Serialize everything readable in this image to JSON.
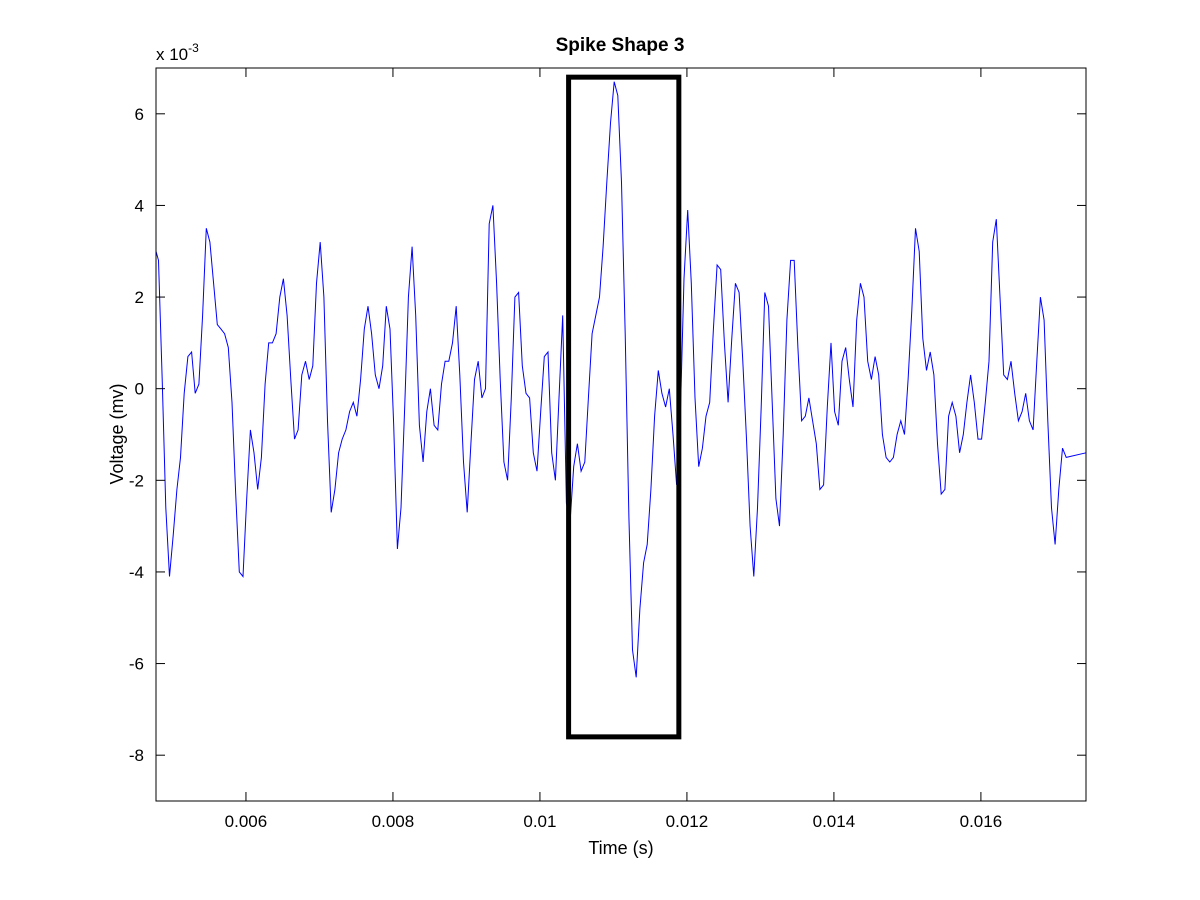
{
  "chart_data": {
    "type": "line",
    "title": "Spike Shape 3",
    "xlabel": "Time (s)",
    "ylabel": "Voltage (mv)",
    "y_exponent_label": "x 10",
    "y_exponent": "-3",
    "xlim": [
      0.004776,
      0.01743
    ],
    "ylim": [
      -9,
      7
    ],
    "x_ticks": [
      0.006,
      0.008,
      0.01,
      0.012,
      0.014,
      0.016
    ],
    "x_tick_labels": [
      "0.006",
      "0.008",
      "0.01",
      "0.012",
      "0.014",
      "0.016"
    ],
    "y_ticks": [
      6,
      4,
      2,
      0,
      -2,
      -4,
      -6,
      -8
    ],
    "y_tick_labels": [
      "6",
      "4",
      "2",
      "0",
      "-2",
      "-4",
      "-6",
      "-8"
    ],
    "grid": false,
    "legend": null,
    "series": [
      {
        "name": "spike waveform",
        "color": "#0000ff",
        "points": [
          [
            0.004776,
            3.0
          ],
          [
            0.00481,
            2.8
          ],
          [
            0.00486,
            0.2
          ],
          [
            0.00491,
            -2.6
          ],
          [
            0.00496,
            -4.1
          ],
          [
            0.00501,
            -3.2
          ],
          [
            0.00506,
            -2.2
          ],
          [
            0.00511,
            -1.5
          ],
          [
            0.00516,
            -0.1
          ],
          [
            0.00521,
            0.7
          ],
          [
            0.00526,
            0.8
          ],
          [
            0.00531,
            -0.1
          ],
          [
            0.00536,
            0.1
          ],
          [
            0.00541,
            1.6
          ],
          [
            0.00546,
            3.5
          ],
          [
            0.00551,
            3.2
          ],
          [
            0.00556,
            2.3
          ],
          [
            0.00561,
            1.4
          ],
          [
            0.00566,
            1.3
          ],
          [
            0.00571,
            1.2
          ],
          [
            0.00576,
            0.9
          ],
          [
            0.00581,
            -0.3
          ],
          [
            0.00586,
            -2.3
          ],
          [
            0.00591,
            -4.0
          ],
          [
            0.00596,
            -4.1
          ],
          [
            0.00601,
            -2.4
          ],
          [
            0.00606,
            -0.9
          ],
          [
            0.00611,
            -1.4
          ],
          [
            0.00616,
            -2.2
          ],
          [
            0.00621,
            -1.5
          ],
          [
            0.00626,
            0.1
          ],
          [
            0.00631,
            1.0
          ],
          [
            0.00636,
            1.0
          ],
          [
            0.00641,
            1.2
          ],
          [
            0.00646,
            2.0
          ],
          [
            0.00651,
            2.4
          ],
          [
            0.00656,
            1.6
          ],
          [
            0.00661,
            0.2
          ],
          [
            0.00666,
            -1.1
          ],
          [
            0.00671,
            -0.9
          ],
          [
            0.00676,
            0.3
          ],
          [
            0.00681,
            0.6
          ],
          [
            0.00686,
            0.2
          ],
          [
            0.00691,
            0.5
          ],
          [
            0.00696,
            2.3
          ],
          [
            0.00701,
            3.2
          ],
          [
            0.00706,
            2.0
          ],
          [
            0.00711,
            -0.7
          ],
          [
            0.00716,
            -2.7
          ],
          [
            0.00721,
            -2.2
          ],
          [
            0.00726,
            -1.4
          ],
          [
            0.00731,
            -1.1
          ],
          [
            0.00736,
            -0.9
          ],
          [
            0.00741,
            -0.5
          ],
          [
            0.00746,
            -0.3
          ],
          [
            0.00751,
            -0.6
          ],
          [
            0.00756,
            0.2
          ],
          [
            0.00761,
            1.3
          ],
          [
            0.00766,
            1.8
          ],
          [
            0.00771,
            1.2
          ],
          [
            0.00776,
            0.3
          ],
          [
            0.00781,
            0.0
          ],
          [
            0.00786,
            0.5
          ],
          [
            0.00791,
            1.8
          ],
          [
            0.00796,
            1.3
          ],
          [
            0.00801,
            -0.8
          ],
          [
            0.00806,
            -3.5
          ],
          [
            0.00811,
            -2.6
          ],
          [
            0.00816,
            -0.4
          ],
          [
            0.00821,
            2.0
          ],
          [
            0.00826,
            3.1
          ],
          [
            0.00831,
            1.6
          ],
          [
            0.00836,
            -0.8
          ],
          [
            0.00841,
            -1.6
          ],
          [
            0.00846,
            -0.5
          ],
          [
            0.00851,
            0.0
          ],
          [
            0.00856,
            -0.8
          ],
          [
            0.00861,
            -0.9
          ],
          [
            0.00866,
            0.1
          ],
          [
            0.00871,
            0.6
          ],
          [
            0.00876,
            0.6
          ],
          [
            0.00881,
            1.0
          ],
          [
            0.00886,
            1.8
          ],
          [
            0.00891,
            0.3
          ],
          [
            0.00896,
            -1.6
          ],
          [
            0.00901,
            -2.7
          ],
          [
            0.00906,
            -1.2
          ],
          [
            0.00911,
            0.2
          ],
          [
            0.00916,
            0.6
          ],
          [
            0.00921,
            -0.2
          ],
          [
            0.00926,
            0.0
          ],
          [
            0.00931,
            3.6
          ],
          [
            0.00936,
            4.0
          ],
          [
            0.00941,
            2.3
          ],
          [
            0.00946,
            0.2
          ],
          [
            0.00951,
            -1.6
          ],
          [
            0.00956,
            -2.0
          ],
          [
            0.00961,
            -0.2
          ],
          [
            0.00966,
            2.0
          ],
          [
            0.00971,
            2.1
          ],
          [
            0.00976,
            0.5
          ],
          [
            0.00981,
            -0.1
          ],
          [
            0.00986,
            -0.2
          ],
          [
            0.00991,
            -1.4
          ],
          [
            0.00996,
            -1.8
          ],
          [
            0.01001,
            -0.5
          ],
          [
            0.01006,
            0.7
          ],
          [
            0.01011,
            0.8
          ],
          [
            0.01016,
            -1.4
          ],
          [
            0.01021,
            -2.0
          ],
          [
            0.01026,
            -0.2
          ],
          [
            0.01031,
            1.6
          ],
          [
            0.01036,
            -2.5
          ],
          [
            0.01041,
            -2.9
          ],
          [
            0.01046,
            -1.7
          ],
          [
            0.01051,
            -1.2
          ],
          [
            0.01056,
            -1.8
          ],
          [
            0.01061,
            -1.6
          ],
          [
            0.01066,
            -0.2
          ],
          [
            0.01071,
            1.2
          ],
          [
            0.01076,
            1.6
          ],
          [
            0.01081,
            2.0
          ],
          [
            0.01086,
            3.1
          ],
          [
            0.01091,
            4.5
          ],
          [
            0.01096,
            5.8
          ],
          [
            0.01101,
            6.7
          ],
          [
            0.01106,
            6.4
          ],
          [
            0.01111,
            4.5
          ],
          [
            0.01116,
            1.2
          ],
          [
            0.01121,
            -2.8
          ],
          [
            0.01126,
            -5.7
          ],
          [
            0.01131,
            -6.3
          ],
          [
            0.01136,
            -4.8
          ],
          [
            0.01141,
            -3.8
          ],
          [
            0.01146,
            -3.4
          ],
          [
            0.01151,
            -2.2
          ],
          [
            0.01156,
            -0.6
          ],
          [
            0.01161,
            0.4
          ],
          [
            0.01166,
            -0.1
          ],
          [
            0.01171,
            -0.4
          ],
          [
            0.01176,
            0.0
          ],
          [
            0.01181,
            -1.0
          ],
          [
            0.01186,
            -2.1
          ],
          [
            0.01191,
            -0.6
          ],
          [
            0.01196,
            2.4
          ],
          [
            0.01201,
            3.9
          ],
          [
            0.01206,
            2.3
          ],
          [
            0.01211,
            -0.2
          ],
          [
            0.01216,
            -1.7
          ],
          [
            0.01221,
            -1.3
          ],
          [
            0.01226,
            -0.6
          ],
          [
            0.01231,
            -0.3
          ],
          [
            0.01236,
            1.3
          ],
          [
            0.01241,
            2.7
          ],
          [
            0.01246,
            2.6
          ],
          [
            0.01251,
            1.0
          ],
          [
            0.01256,
            -0.3
          ],
          [
            0.01261,
            1.1
          ],
          [
            0.01266,
            2.3
          ],
          [
            0.01271,
            2.1
          ],
          [
            0.01276,
            0.6
          ],
          [
            0.01281,
            -1.1
          ],
          [
            0.01286,
            -3.0
          ],
          [
            0.01291,
            -4.1
          ],
          [
            0.01296,
            -2.6
          ],
          [
            0.01301,
            -0.4
          ],
          [
            0.01306,
            2.1
          ],
          [
            0.01311,
            1.8
          ],
          [
            0.01316,
            -0.3
          ],
          [
            0.01321,
            -2.4
          ],
          [
            0.01326,
            -3.0
          ],
          [
            0.01331,
            -1.0
          ],
          [
            0.01336,
            1.5
          ],
          [
            0.01341,
            2.8
          ],
          [
            0.01346,
            2.8
          ],
          [
            0.01351,
            0.9
          ],
          [
            0.01356,
            -0.7
          ],
          [
            0.01361,
            -0.6
          ],
          [
            0.01366,
            -0.2
          ],
          [
            0.01371,
            -0.7
          ],
          [
            0.01376,
            -1.2
          ],
          [
            0.01381,
            -2.2
          ],
          [
            0.01386,
            -2.1
          ],
          [
            0.01391,
            -0.4
          ],
          [
            0.01396,
            1.0
          ],
          [
            0.01401,
            -0.5
          ],
          [
            0.01406,
            -0.8
          ],
          [
            0.01411,
            0.6
          ],
          [
            0.01416,
            0.9
          ],
          [
            0.01421,
            0.2
          ],
          [
            0.01426,
            -0.4
          ],
          [
            0.01431,
            1.5
          ],
          [
            0.01436,
            2.3
          ],
          [
            0.01441,
            2.0
          ],
          [
            0.01446,
            0.6
          ],
          [
            0.01451,
            0.2
          ],
          [
            0.01456,
            0.7
          ],
          [
            0.01461,
            0.3
          ],
          [
            0.01466,
            -1.0
          ],
          [
            0.01471,
            -1.5
          ],
          [
            0.01476,
            -1.6
          ],
          [
            0.01481,
            -1.5
          ],
          [
            0.01486,
            -1.0
          ],
          [
            0.01491,
            -0.7
          ],
          [
            0.01496,
            -1.0
          ],
          [
            0.01501,
            0.2
          ],
          [
            0.01506,
            1.7
          ],
          [
            0.01511,
            3.5
          ],
          [
            0.01516,
            3.0
          ],
          [
            0.01521,
            1.1
          ],
          [
            0.01526,
            0.4
          ],
          [
            0.01531,
            0.8
          ],
          [
            0.01536,
            0.3
          ],
          [
            0.01541,
            -1.2
          ],
          [
            0.01546,
            -2.3
          ],
          [
            0.01551,
            -2.2
          ],
          [
            0.01556,
            -0.6
          ],
          [
            0.01561,
            -0.3
          ],
          [
            0.01566,
            -0.6
          ],
          [
            0.01571,
            -1.4
          ],
          [
            0.01576,
            -1.0
          ],
          [
            0.01581,
            -0.3
          ],
          [
            0.01586,
            0.3
          ],
          [
            0.01591,
            -0.3
          ],
          [
            0.01596,
            -1.1
          ],
          [
            0.01601,
            -1.1
          ],
          [
            0.01606,
            -0.3
          ],
          [
            0.01611,
            0.6
          ],
          [
            0.01616,
            3.2
          ],
          [
            0.01621,
            3.7
          ],
          [
            0.01626,
            2.0
          ],
          [
            0.01631,
            0.3
          ],
          [
            0.01636,
            0.2
          ],
          [
            0.01641,
            0.6
          ],
          [
            0.01646,
            -0.1
          ],
          [
            0.01651,
            -0.7
          ],
          [
            0.01656,
            -0.5
          ],
          [
            0.01661,
            -0.1
          ],
          [
            0.01666,
            -0.7
          ],
          [
            0.01671,
            -0.9
          ],
          [
            0.01676,
            0.6
          ],
          [
            0.01681,
            2.0
          ],
          [
            0.01686,
            1.5
          ],
          [
            0.01691,
            -0.7
          ],
          [
            0.01696,
            -2.6
          ],
          [
            0.01701,
            -3.4
          ],
          [
            0.01706,
            -2.2
          ],
          [
            0.01711,
            -1.3
          ],
          [
            0.01716,
            -1.5
          ],
          [
            0.01743,
            -1.4
          ]
        ]
      }
    ],
    "annotations": [
      {
        "type": "rectangle",
        "label": "spike-highlight-box",
        "x_range": [
          0.01039,
          0.01189
        ],
        "y_range": [
          -7.6,
          6.8
        ],
        "color": "#000000",
        "line_width": 5
      }
    ]
  }
}
